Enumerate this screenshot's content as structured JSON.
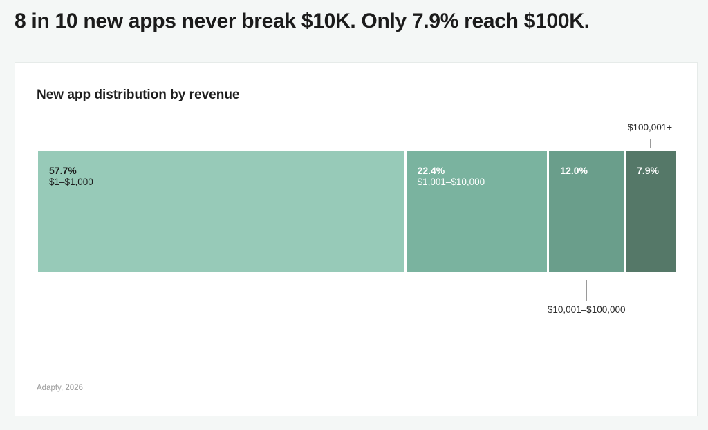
{
  "headline": "8 in 10 new apps never break $10K. Only 7.9% reach $100K.",
  "chart_data": {
    "type": "bar",
    "orientation": "stacked-horizontal-100",
    "title": "New app distribution by revenue",
    "categories": [
      "$1–$1,000",
      "$1,001–$10,000",
      "$10,001–$100,000",
      "$100,001+"
    ],
    "values": [
      57.7,
      22.4,
      12.0,
      7.9
    ],
    "value_labels": [
      "57.7%",
      "22.4%",
      "12.0%",
      "7.9%"
    ],
    "colors": [
      "#97cab8",
      "#7ab39f",
      "#6a9e8b",
      "#557868"
    ],
    "label_colors": [
      "#1d1d1d",
      "#ffffff",
      "#ffffff",
      "#ffffff"
    ],
    "category_label_position": [
      "inside",
      "inside",
      "below",
      "above"
    ],
    "unit": "%"
  },
  "source": "Adapty, 2026"
}
